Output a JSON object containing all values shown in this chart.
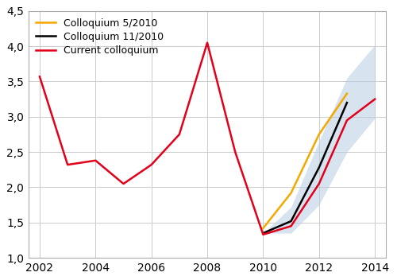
{
  "title": "",
  "red_x": [
    2002,
    2003,
    2004,
    2005,
    2006,
    2007,
    2008,
    2009,
    2010,
    2011,
    2012,
    2013,
    2014
  ],
  "red_y": [
    3.57,
    2.32,
    2.38,
    2.05,
    2.32,
    2.75,
    4.05,
    2.5,
    1.33,
    1.45,
    2.05,
    2.95,
    3.25
  ],
  "black_x": [
    2010,
    2011,
    2012,
    2013
  ],
  "black_y": [
    1.35,
    1.52,
    2.28,
    3.2
  ],
  "yellow_x": [
    2010,
    2011,
    2012,
    2013
  ],
  "yellow_y": [
    1.42,
    1.92,
    2.75,
    3.33
  ],
  "shade_upper": [
    1.35,
    1.72,
    2.65,
    3.55,
    4.02
  ],
  "shade_lower": [
    1.35,
    1.35,
    1.75,
    2.5,
    2.98
  ],
  "shade_x": [
    2010,
    2011,
    2012,
    2013,
    2014
  ],
  "red_color": "#e2001a",
  "black_color": "#000000",
  "yellow_color": "#f5a800",
  "shade_color": "#b8cce4",
  "legend_labels": [
    "Current colloquium",
    "Colloquium 11/2010",
    "Colloquium 5/2010"
  ],
  "xlim": [
    2001.6,
    2014.4
  ],
  "ylim": [
    1.0,
    4.5
  ],
  "yticks": [
    1.0,
    1.5,
    2.0,
    2.5,
    3.0,
    3.5,
    4.0,
    4.5
  ],
  "ytick_labels": [
    "1,0",
    "1,5",
    "2,0",
    "2,5",
    "3,0",
    "3,5",
    "4,0",
    "4,5"
  ],
  "xticks": [
    2002,
    2004,
    2006,
    2008,
    2010,
    2012,
    2014
  ],
  "bg_color": "#ffffff",
  "grid_color": "#cccccc",
  "line_width": 1.8,
  "font_size": 10,
  "border_color": "#aaaaaa"
}
